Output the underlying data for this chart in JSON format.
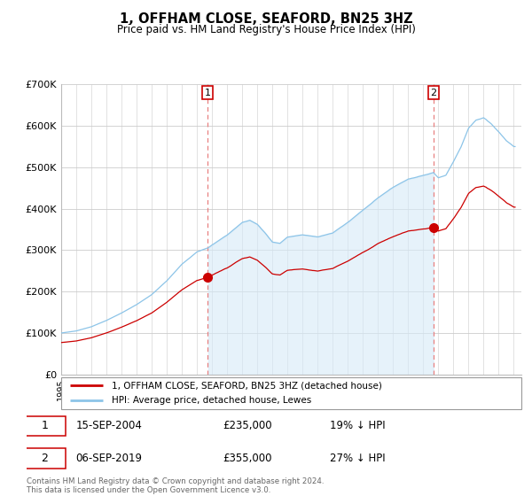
{
  "title": "1, OFFHAM CLOSE, SEAFORD, BN25 3HZ",
  "subtitle": "Price paid vs. HM Land Registry's House Price Index (HPI)",
  "hpi_color": "#8cc4e8",
  "price_color": "#cc0000",
  "fill_color": "#d6eaf8",
  "sale1_date": "15-SEP-2004",
  "sale1_price": 235000,
  "sale1_year": 2004.708,
  "sale2_date": "06-SEP-2019",
  "sale2_price": 355000,
  "sale2_year": 2019.675,
  "sale1_hpi_pct": "19% ↓ HPI",
  "sale2_hpi_pct": "27% ↓ HPI",
  "legend_line1": "1, OFFHAM CLOSE, SEAFORD, BN25 3HZ (detached house)",
  "legend_line2": "HPI: Average price, detached house, Lewes",
  "footer": "Contains HM Land Registry data © Crown copyright and database right 2024.\nThis data is licensed under the Open Government Licence v3.0.",
  "ylim": [
    0,
    700000
  ],
  "yticks": [
    0,
    100000,
    200000,
    300000,
    400000,
    500000,
    600000,
    700000
  ],
  "ylabel_fmt": [
    "£0",
    "£100K",
    "£200K",
    "£300K",
    "£400K",
    "£500K",
    "£600K",
    "£700K"
  ],
  "x_start_year": 1995,
  "x_end_year": 2025
}
